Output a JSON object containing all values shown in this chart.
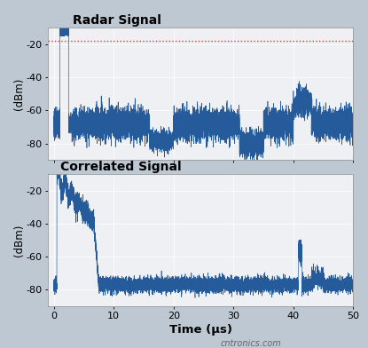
{
  "title1": "Radar Signal",
  "title2": "Correlated Signal",
  "xlabel": "Time (μs)",
  "ylabel": "(dBm)",
  "xlim": [
    -1,
    50
  ],
  "ylim1": [
    -90,
    -10
  ],
  "ylim2": [
    -90,
    -10
  ],
  "yticks": [
    -80,
    -60,
    -40,
    -20
  ],
  "xticks": [
    0,
    10,
    20,
    30,
    40,
    50
  ],
  "bg_color": "#bec8d2",
  "plot_bg": "#eef0f3",
  "line_color": "#1a5296",
  "dotted_line_color": "#d04040",
  "dotted_line_y": -18,
  "title_fontsize": 10,
  "label_fontsize": 8.5,
  "tick_fontsize": 8,
  "xlabel_fontsize": 9.5,
  "watermark": "cntronics.com"
}
